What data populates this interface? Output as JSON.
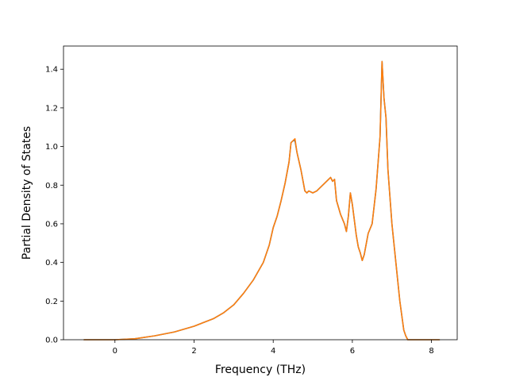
{
  "chart_data": {
    "type": "line",
    "title": "",
    "xlabel": "Frequency (THz)",
    "ylabel": "Partial Density of States",
    "xlim": [
      -1.3,
      8.65
    ],
    "ylim": [
      0.0,
      1.52
    ],
    "xticks": [
      0,
      2,
      4,
      6,
      8
    ],
    "xtick_labels": [
      "0",
      "2",
      "4",
      "6",
      "8"
    ],
    "yticks": [
      0.0,
      0.2,
      0.4,
      0.6,
      0.8,
      1.0,
      1.2,
      1.4
    ],
    "ytick_labels": [
      "0.0",
      "0.2",
      "0.4",
      "0.6",
      "0.8",
      "1.0",
      "1.2",
      "1.4"
    ],
    "grid": false,
    "legend": "none",
    "series": [
      {
        "color": "#1f77b4",
        "x": [
          -0.78,
          0.0,
          0.5,
          1.0,
          1.5,
          2.0,
          2.5,
          2.75,
          3.0,
          3.25,
          3.5,
          3.75,
          3.9,
          4.0,
          4.1,
          4.2,
          4.3,
          4.4,
          4.45,
          4.5,
          4.55,
          4.6,
          4.7,
          4.8,
          4.85,
          4.9,
          5.0,
          5.1,
          5.2,
          5.3,
          5.4,
          5.45,
          5.5,
          5.55,
          5.6,
          5.7,
          5.8,
          5.85,
          5.9,
          5.95,
          6.0,
          6.05,
          6.1,
          6.15,
          6.2,
          6.25,
          6.3,
          6.4,
          6.5,
          6.6,
          6.7,
          6.75,
          6.8,
          6.85,
          6.9,
          7.0,
          7.1,
          7.2,
          7.3,
          7.35,
          7.4,
          7.45,
          7.5,
          8.2
        ],
        "y": [
          0.0,
          0.0,
          0.005,
          0.02,
          0.04,
          0.07,
          0.11,
          0.14,
          0.18,
          0.24,
          0.31,
          0.4,
          0.49,
          0.58,
          0.64,
          0.72,
          0.81,
          0.92,
          1.02,
          1.03,
          1.03,
          0.97,
          0.88,
          0.77,
          0.76,
          0.77,
          0.76,
          0.77,
          0.79,
          0.81,
          0.83,
          0.84,
          0.82,
          0.83,
          0.72,
          0.65,
          0.6,
          0.56,
          0.64,
          0.76,
          0.7,
          0.62,
          0.54,
          0.48,
          0.45,
          0.41,
          0.44,
          0.55,
          0.6,
          0.78,
          1.05,
          1.44,
          1.25,
          1.15,
          0.88,
          0.6,
          0.4,
          0.2,
          0.05,
          0.02,
          0.0,
          0.0,
          0.0,
          0.0
        ]
      },
      {
        "color": "#ff7f0e",
        "x": [
          -0.78,
          0.0,
          0.5,
          1.0,
          1.5,
          2.0,
          2.5,
          2.75,
          3.0,
          3.25,
          3.5,
          3.75,
          3.9,
          4.0,
          4.1,
          4.2,
          4.3,
          4.4,
          4.45,
          4.5,
          4.55,
          4.6,
          4.7,
          4.8,
          4.85,
          4.9,
          5.0,
          5.1,
          5.2,
          5.3,
          5.4,
          5.45,
          5.5,
          5.55,
          5.6,
          5.7,
          5.8,
          5.85,
          5.9,
          5.95,
          6.0,
          6.05,
          6.1,
          6.15,
          6.2,
          6.25,
          6.3,
          6.4,
          6.5,
          6.6,
          6.7,
          6.75,
          6.8,
          6.85,
          6.9,
          7.0,
          7.1,
          7.2,
          7.3,
          7.35,
          7.4,
          7.45,
          7.5,
          8.2
        ],
        "y": [
          0.0,
          0.0,
          0.005,
          0.02,
          0.04,
          0.07,
          0.11,
          0.14,
          0.18,
          0.24,
          0.31,
          0.4,
          0.49,
          0.58,
          0.64,
          0.72,
          0.81,
          0.92,
          1.02,
          1.03,
          1.04,
          0.97,
          0.88,
          0.77,
          0.76,
          0.77,
          0.76,
          0.77,
          0.79,
          0.81,
          0.83,
          0.84,
          0.82,
          0.83,
          0.72,
          0.65,
          0.6,
          0.56,
          0.64,
          0.76,
          0.7,
          0.62,
          0.54,
          0.48,
          0.45,
          0.41,
          0.44,
          0.55,
          0.6,
          0.78,
          1.05,
          1.44,
          1.25,
          1.15,
          0.88,
          0.6,
          0.4,
          0.2,
          0.05,
          0.02,
          0.0,
          0.0,
          0.0,
          0.0
        ]
      }
    ]
  }
}
